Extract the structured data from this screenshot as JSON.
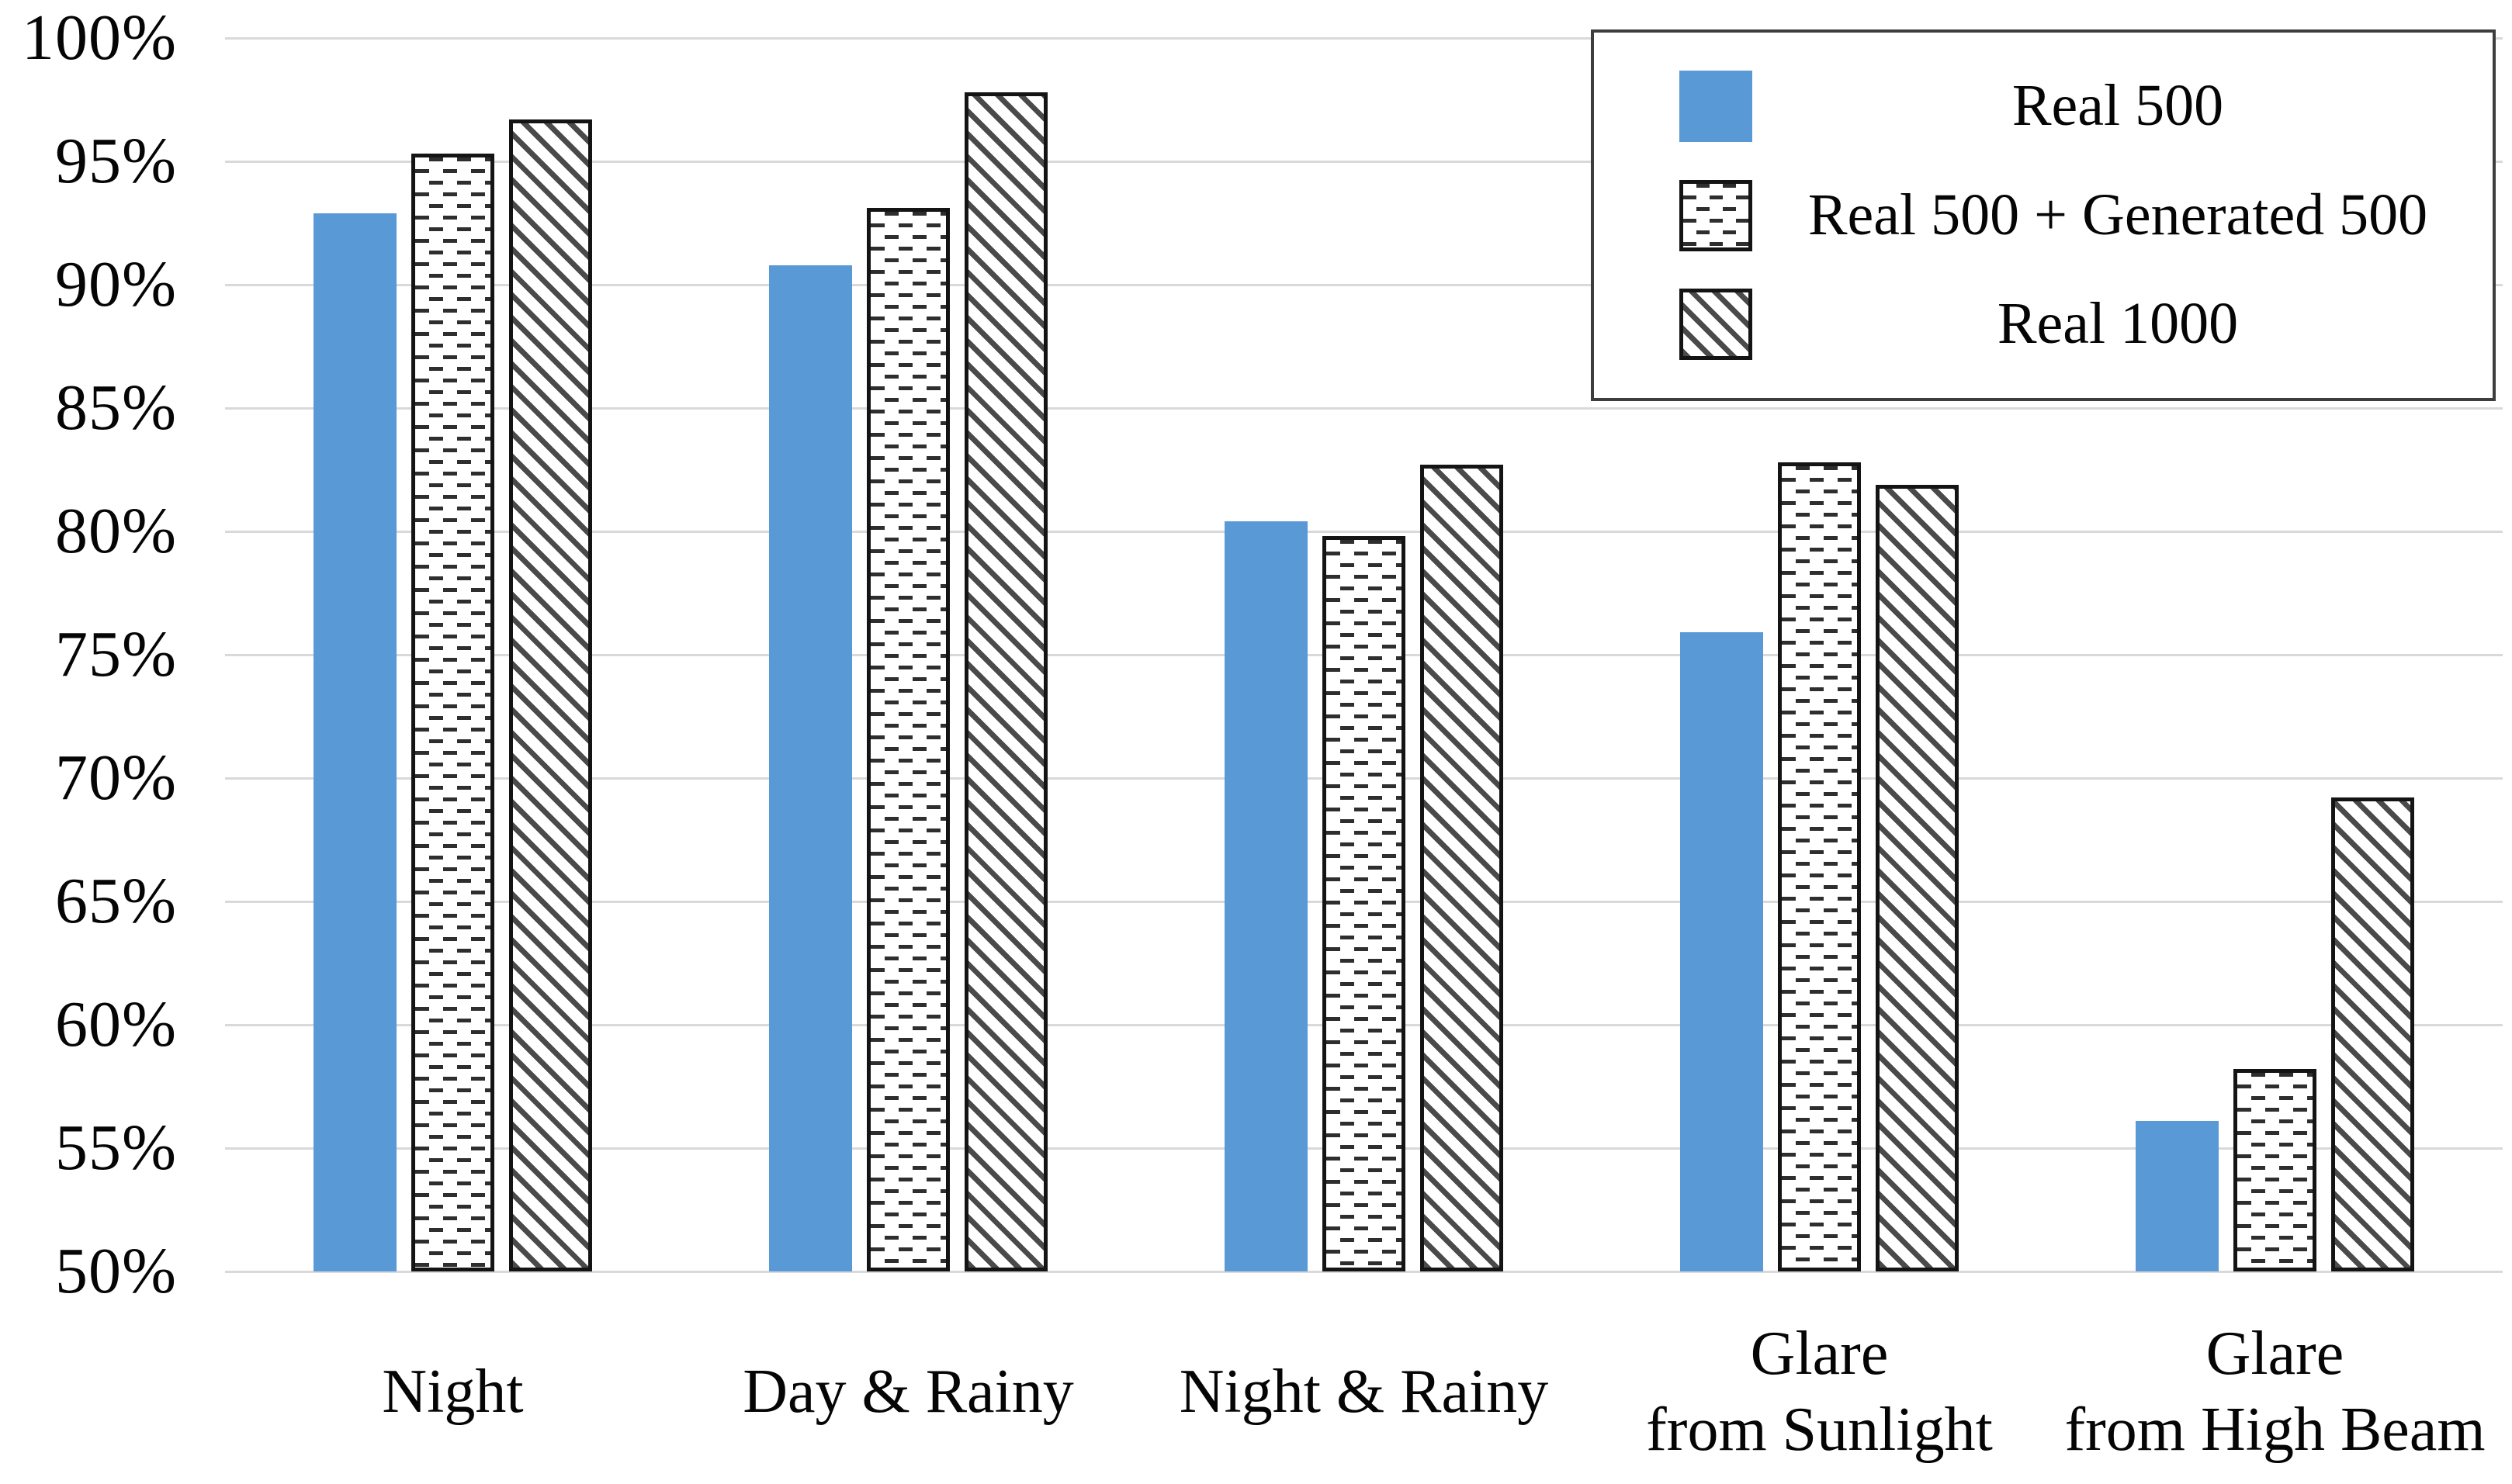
{
  "chart_data": {
    "type": "bar",
    "title": "",
    "categories": [
      "Night",
      "Day & Rainy",
      "Night & Rainy",
      "Glare\nfrom Sunlight",
      "Glare\nfrom High Beam"
    ],
    "series": [
      {
        "name": "Real 500",
        "pattern": "solid",
        "color": "#5999D6",
        "values": [
          92.9,
          90.8,
          80.4,
          75.9,
          56.1
        ]
      },
      {
        "name": "Real 500 + Generated 500",
        "pattern": "dashes",
        "color": "#ffffff",
        "values": [
          95.3,
          93.1,
          79.8,
          82.8,
          58.2
        ]
      },
      {
        "name": "Real 1000",
        "pattern": "hatch",
        "color": "#ffffff",
        "values": [
          96.7,
          97.8,
          82.7,
          81.9,
          69.2
        ]
      }
    ],
    "y_axis": {
      "min": 50,
      "max": 100,
      "step": 5,
      "format": "percent",
      "tick_labels": [
        "100%",
        "95%",
        "90%",
        "85%",
        "80%",
        "75%",
        "70%",
        "65%",
        "60%",
        "55%",
        "50%"
      ]
    },
    "grid": true,
    "legend_position": "top-right",
    "colors": {
      "bar_blue": "#5999D6",
      "gridline": "#d9d9d9",
      "pattern_ink": "#2e2e2e",
      "legend_border": "#3d3d3d"
    }
  }
}
